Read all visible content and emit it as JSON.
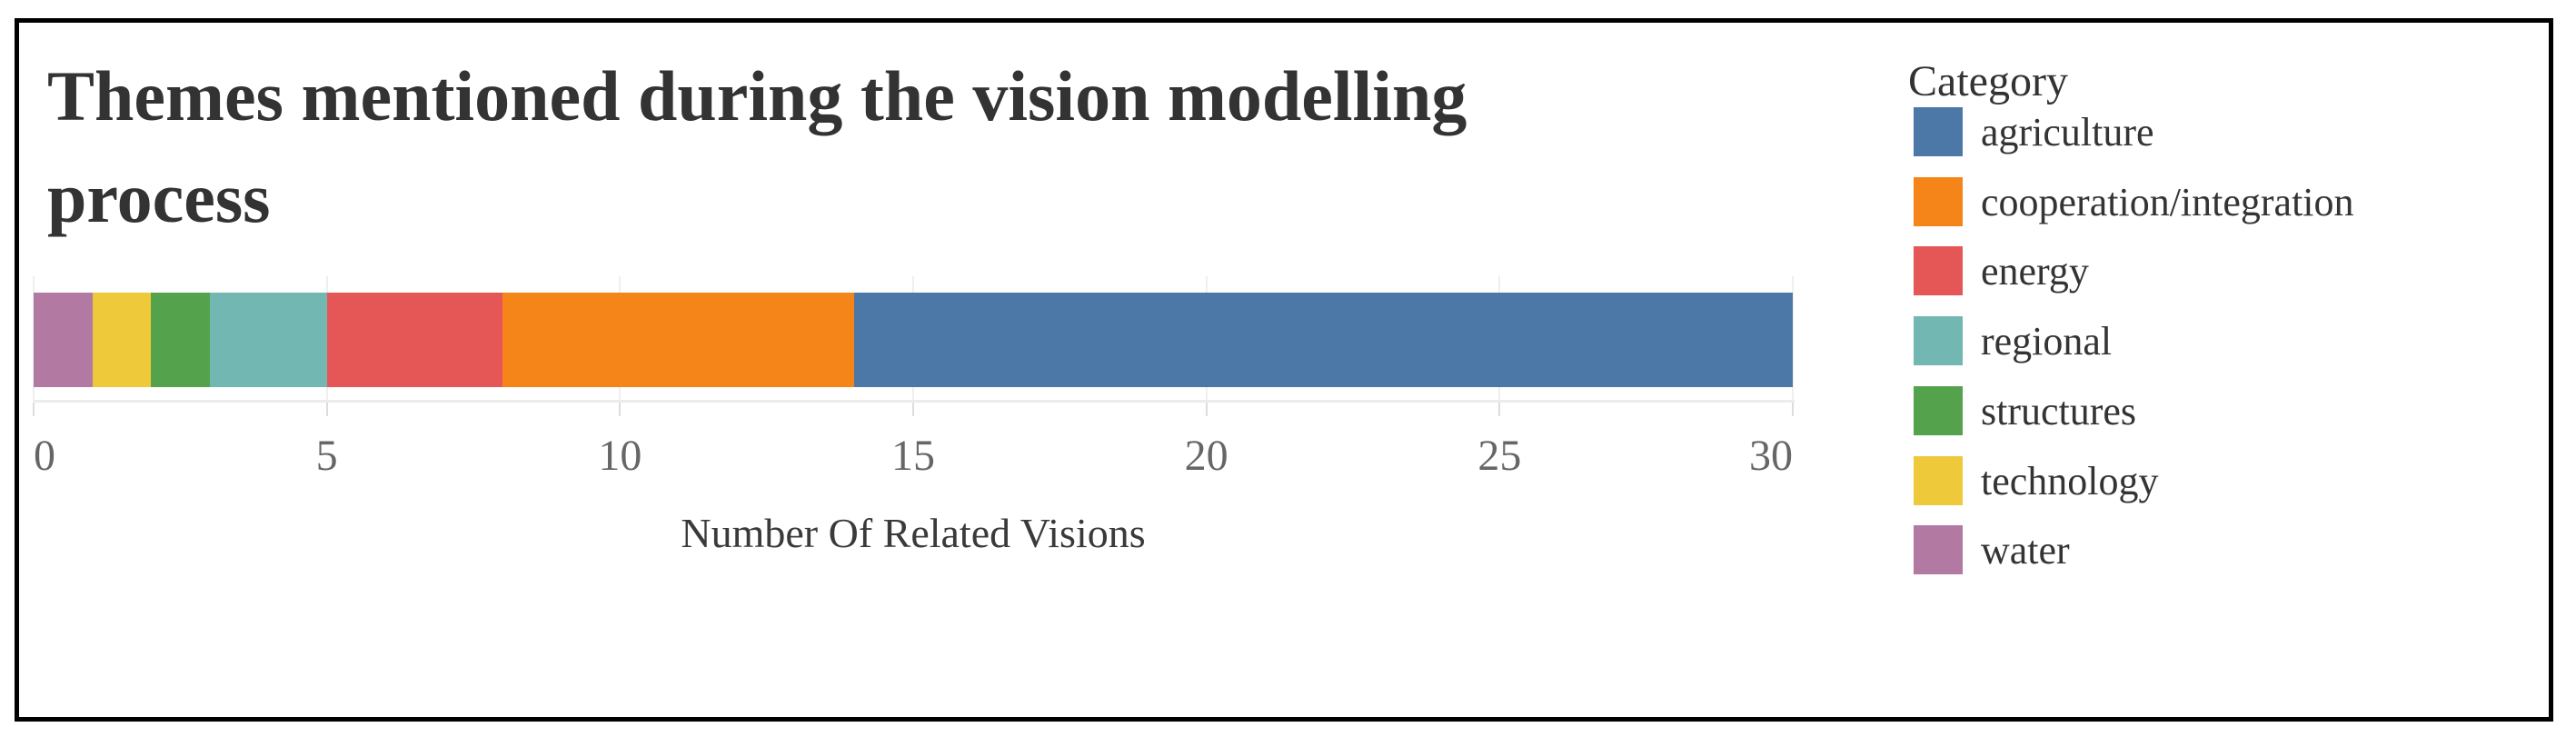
{
  "chart_data": {
    "type": "bar",
    "orientation": "horizontal-stacked",
    "title": "Themes mentioned during the vision modelling process",
    "title_lines": [
      "Themes mentioned during the vision modelling",
      "process"
    ],
    "xlabel": "Number Of Related Visions",
    "xlim": [
      0,
      30
    ],
    "xticks": [
      0,
      5,
      10,
      15,
      20,
      25,
      30
    ],
    "grid": true,
    "legend_position": "right",
    "legend_title": "Category",
    "series": [
      {
        "name": "agriculture",
        "value": 16,
        "color": "#4c78a8"
      },
      {
        "name": "cooperation/integration",
        "value": 6,
        "color": "#f58518"
      },
      {
        "name": "energy",
        "value": 3,
        "color": "#e45756"
      },
      {
        "name": "regional",
        "value": 2,
        "color": "#72b7b2"
      },
      {
        "name": "structures",
        "value": 1,
        "color": "#54a24b"
      },
      {
        "name": "technology",
        "value": 1,
        "color": "#eeca3b"
      },
      {
        "name": "water",
        "value": 1,
        "color": "#b279a2"
      }
    ],
    "stack_order_left_to_right": [
      "water",
      "technology",
      "structures",
      "regional",
      "energy",
      "cooperation/integration",
      "agriculture"
    ]
  }
}
